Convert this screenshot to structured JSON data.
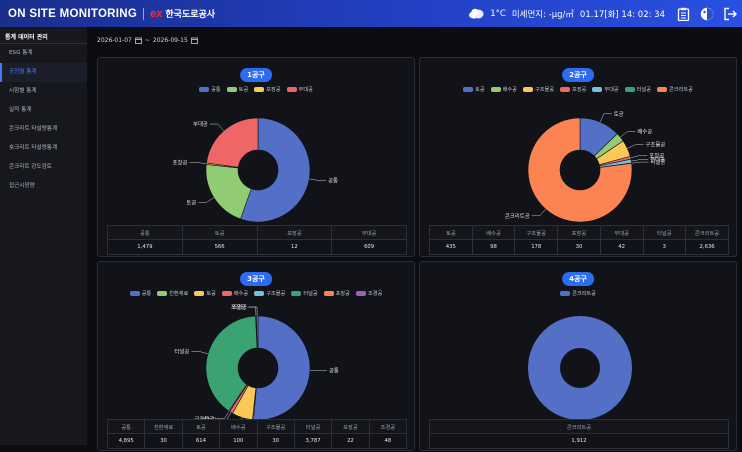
{
  "header": {
    "app_title": "ON SITE MONITORING",
    "logo_mark": "ex",
    "org_name": "한국도로공사",
    "temperature": "1°C",
    "dust": "미세먼지: -μg/㎥",
    "datetime": "01.17[화] 14: 02: 34"
  },
  "icons": {
    "weather": "cloud-icon",
    "report": "clipboard-icon",
    "theme": "theme-icon",
    "logout": "logout-icon",
    "calendar": "calendar-icon"
  },
  "sidebar": {
    "title": "통계 데이터 관리",
    "items": [
      "ESG 통계",
      "공정별 통계",
      "시험별 통계",
      "실적 통계",
      "콘크리트 타설량통계",
      "숏크리트 타설량통계",
      "콘크리트 강도검토",
      "접근시망량"
    ],
    "active_index": 1
  },
  "filter": {
    "start_date": "2026-01-07",
    "separator": "~",
    "end_date": "2026-09-15"
  },
  "colors": {
    "accent": "#2c6cf2",
    "공통": "#5470c6",
    "토공": "#91cc75",
    "포장공": "#fac858",
    "부대공": "#ee6666",
    "배수공": "#ee6666",
    "구조물공": "#fac858",
    "터널공": "#3ba272",
    "콘크리트공": "#fc8452",
    "친환재료": "#91cc75",
    "조경공": "#9a60b4"
  },
  "panels": [
    {
      "title": "1공구",
      "categories": [
        "공통",
        "토공",
        "포장공",
        "부대공"
      ],
      "values": [
        1479,
        566,
        12,
        609
      ],
      "value_labels": [
        "1,479",
        "566",
        "12",
        "609"
      ],
      "colors": [
        "#5470c6",
        "#91cc75",
        "#fac858",
        "#ee6666"
      ]
    },
    {
      "title": "2공구",
      "categories": [
        "토공",
        "배수공",
        "구조물공",
        "포장공",
        "부대공",
        "터널공",
        "콘크리트공"
      ],
      "values": [
        435,
        98,
        178,
        30,
        42,
        3,
        2636
      ],
      "value_labels": [
        "435",
        "98",
        "178",
        "30",
        "42",
        "3",
        "2,636"
      ],
      "colors": [
        "#5470c6",
        "#91cc75",
        "#fac858",
        "#ee6666",
        "#73c0de",
        "#3ba272",
        "#fc8452"
      ]
    },
    {
      "title": "3공구",
      "categories": [
        "공통",
        "친환재료",
        "토공",
        "배수공",
        "구조물공",
        "터널공",
        "포장공",
        "조경공"
      ],
      "values": [
        4895,
        30,
        614,
        100,
        30,
        3787,
        22,
        48
      ],
      "value_labels": [
        "4,895",
        "30",
        "614",
        "100",
        "30",
        "3,787",
        "22",
        "48"
      ],
      "colors": [
        "#5470c6",
        "#91cc75",
        "#fac858",
        "#ee6666",
        "#73c0de",
        "#3ba272",
        "#fc8452",
        "#9a60b4"
      ]
    },
    {
      "title": "4공구",
      "categories": [
        "콘크리트공"
      ],
      "values": [
        1912
      ],
      "value_labels": [
        "1,912"
      ],
      "colors": [
        "#5470c6"
      ]
    }
  ]
}
